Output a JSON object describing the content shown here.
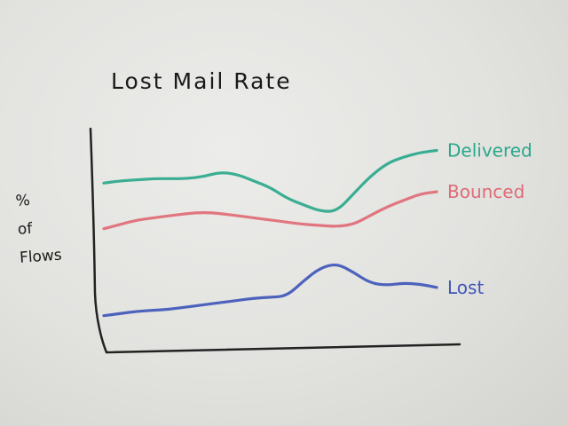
{
  "chart_data": {
    "type": "line",
    "title": "Lost Mail Rate",
    "ylabel": "% of Flows",
    "xlabel": "",
    "ylim": [
      0,
      100
    ],
    "x": [
      0,
      1,
      2,
      3,
      4,
      5,
      6,
      7,
      8,
      9,
      10,
      11,
      12,
      13,
      14,
      15,
      16,
      17,
      18,
      19,
      20
    ],
    "series": [
      {
        "name": "Delivered",
        "color": "#2aa88a",
        "values": [
          75,
          76,
          76.5,
          77,
          77,
          77,
          78,
          80,
          79,
          76,
          73,
          68,
          65,
          62,
          62,
          70,
          78,
          84,
          87,
          89,
          90
        ]
      },
      {
        "name": "Bounced",
        "color": "#df6b76",
        "values": [
          54,
          56,
          58,
          59,
          60,
          61,
          61.5,
          61,
          60,
          59,
          58,
          57,
          56,
          55.5,
          55,
          56,
          60,
          64,
          67,
          70,
          71
        ]
      },
      {
        "name": "Lost",
        "color": "#3f57b8",
        "values": [
          14,
          15,
          16,
          16.5,
          17,
          18,
          19,
          20,
          21,
          22,
          22.5,
          23,
          30,
          36,
          38,
          34,
          29,
          28,
          29,
          28.5,
          27
        ]
      }
    ]
  }
}
